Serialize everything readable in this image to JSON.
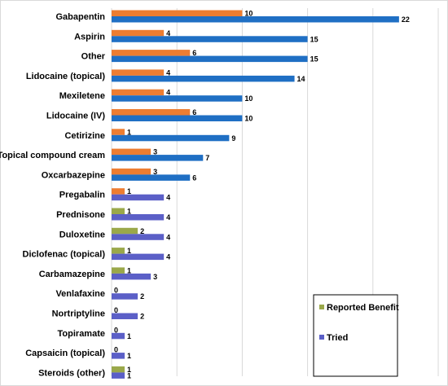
{
  "chart_data": {
    "type": "bar",
    "orientation": "horizontal",
    "categories": [
      "Gabapentin",
      "Aspirin",
      "Other",
      "Lidocaine (topical)",
      "Mexiletene",
      "Lidocaine (IV)",
      "Cetirizine",
      "Topical compound cream",
      "Oxcarbazepine",
      "Pregabalin",
      "Prednisone",
      "Duloxetine",
      "Diclofenac (topical)",
      "Carbamazepine",
      "Venlafaxine",
      "Nortriptyline",
      "Topiramate",
      "Capsaicin (topical)",
      "Steroids (other)"
    ],
    "series": [
      {
        "name": "Reported Benefit",
        "values": [
          10,
          4,
          6,
          4,
          4,
          6,
          1,
          3,
          3,
          1,
          1,
          2,
          1,
          1,
          0,
          0,
          0,
          0,
          1
        ],
        "colors": [
          "#ed7d31",
          "#ed7d31",
          "#ed7d31",
          "#ed7d31",
          "#ed7d31",
          "#ed7d31",
          "#ed7d31",
          "#ed7d31",
          "#ed7d31",
          "#ed7d31",
          "#9aa84a",
          "#9aa84a",
          "#9aa84a",
          "#9aa84a",
          "#9aa84a",
          "#9aa84a",
          "#9aa84a",
          "#9aa84a",
          "#9aa84a"
        ]
      },
      {
        "name": "Tried",
        "values": [
          22,
          15,
          15,
          14,
          10,
          10,
          9,
          7,
          6,
          4,
          4,
          4,
          4,
          3,
          2,
          2,
          1,
          1,
          1
        ],
        "colors": [
          "#1f6fc4",
          "#1f6fc4",
          "#1f6fc4",
          "#1f6fc4",
          "#1f6fc4",
          "#1f6fc4",
          "#1f6fc4",
          "#1f6fc4",
          "#1f6fc4",
          "#5b5fc7",
          "#5b5fc7",
          "#5b5fc7",
          "#5b5fc7",
          "#5b5fc7",
          "#5b5fc7",
          "#5b5fc7",
          "#5b5fc7",
          "#5b5fc7",
          "#5b5fc7"
        ]
      }
    ],
    "xlim": [
      0,
      25
    ],
    "grid": true,
    "gridline_color": "#d9d9d9",
    "legend": {
      "placement": "bottom-right",
      "entries": [
        {
          "name": "Reported Benefit",
          "color": "#9aa84a"
        },
        {
          "name": "Tried",
          "color": "#5b5fc7"
        }
      ]
    }
  }
}
